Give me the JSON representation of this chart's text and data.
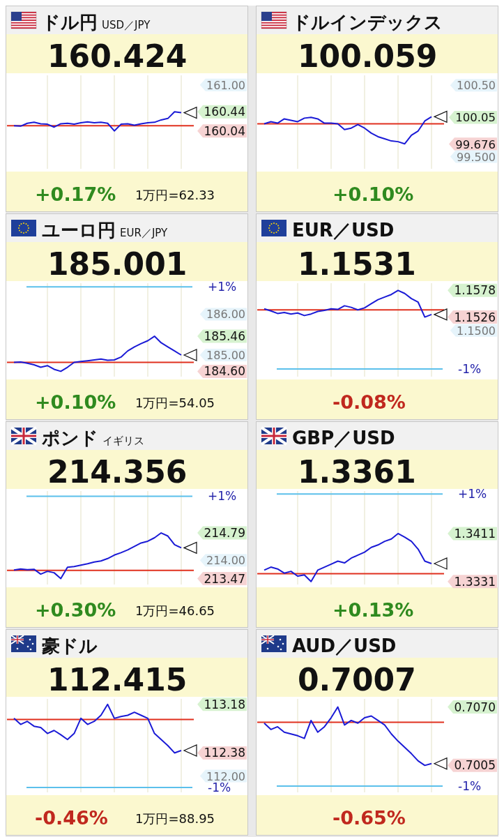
{
  "chart_data": [
    {
      "type": "line",
      "title": "ドル円",
      "subtitle": "USD／JPY",
      "categories": [
        null,
        null,
        null,
        null,
        null,
        null,
        null,
        null,
        null,
        null,
        null,
        null,
        null,
        null,
        null,
        null,
        null,
        null,
        null,
        null,
        null,
        null,
        null,
        null,
        null,
        null
      ],
      "series": [
        {
          "color": "#1a1ad6",
          "values": [
            160.15,
            160.14,
            160.2,
            160.22,
            160.19,
            160.18,
            160.12,
            160.19,
            160.2,
            160.18,
            160.21,
            160.23,
            160.21,
            160.22,
            160.2,
            160.04,
            160.18,
            160.19,
            160.16,
            160.19,
            160.21,
            160.22,
            160.27,
            160.3,
            160.44,
            160.42
          ]
        }
      ],
      "ylim": [
        159.25,
        161.2
      ],
      "yticks": [
        {
          "value": 161,
          "label": "161.00"
        },
        160.44,
        160.04
      ],
      "grid": "x",
      "ref_lines": [
        {
          "axis": "y",
          "value": 160.15,
          "color": "#e0301e"
        }
      ],
      "annotations": [
        "160.424",
        "+0.17%",
        "1万円=62.33"
      ]
    },
    {
      "type": "line",
      "title": "ドルインデックス",
      "categories": [
        null,
        null,
        null,
        null,
        null,
        null,
        null,
        null,
        null,
        null,
        null,
        null,
        null,
        null,
        null,
        null,
        null,
        null,
        null,
        null,
        null,
        null,
        null,
        null,
        null,
        null
      ],
      "series": [
        {
          "color": "#1a1ad6",
          "values": [
            99.96,
            99.99,
            99.97,
            100.03,
            100.01,
            99.99,
            100.04,
            100.05,
            100.03,
            99.97,
            99.97,
            99.96,
            99.88,
            99.9,
            99.95,
            99.9,
            99.83,
            99.78,
            99.75,
            99.72,
            99.71,
            99.68,
            99.8,
            99.86,
            100.0,
            100.06
          ]
        }
      ],
      "ylim": [
        99.33,
        100.64
      ],
      "yticks": [
        {
          "value": 100.5,
          "label": "100.50"
        },
        100.05,
        99.676,
        {
          "value": 99.5,
          "label": "99.500"
        }
      ],
      "grid": "x",
      "ref_lines": [
        {
          "axis": "y",
          "value": 99.96,
          "color": "#e0301e"
        }
      ],
      "annotations": [
        "100.059",
        "+0.10%"
      ]
    },
    {
      "type": "line",
      "title": "ユーロ円",
      "subtitle": "EUR／JPY",
      "categories": [
        null,
        null,
        null,
        null,
        null,
        null,
        null,
        null,
        null,
        null,
        null,
        null,
        null,
        null,
        null,
        null,
        null,
        null,
        null,
        null,
        null,
        null,
        null,
        null,
        null,
        null
      ],
      "series": [
        {
          "color": "#1a1ad6",
          "values": [
            184.82,
            184.83,
            184.8,
            184.76,
            184.7,
            184.74,
            184.65,
            184.6,
            184.7,
            184.82,
            184.84,
            184.86,
            184.88,
            184.9,
            184.87,
            184.88,
            184.95,
            185.1,
            185.2,
            185.28,
            185.35,
            185.46,
            185.3,
            185.2,
            185.1,
            185.0
          ]
        }
      ],
      "ylim": [
        184.47,
        186.76
      ],
      "yticks": [
        {
          "value": 186,
          "label": "186.00"
        },
        185.46,
        {
          "value": 185,
          "label": "185.00"
        },
        {
          "value": 184.6,
          "label": "184.60"
        }
      ],
      "grid": "x",
      "ref_lines": [
        {
          "axis": "y",
          "value": 184.82,
          "color": "#e0301e"
        },
        {
          "axis": "y",
          "value": 186.67,
          "color": "#5bc0eb"
        }
      ],
      "annotations": [
        "185.001",
        "+0.10%",
        "+1%",
        "1万円=54.05"
      ]
    },
    {
      "type": "line",
      "title": "EUR／USD",
      "categories": [
        null,
        null,
        null,
        null,
        null,
        null,
        null,
        null,
        null,
        null,
        null,
        null,
        null,
        null,
        null,
        null,
        null,
        null,
        null,
        null,
        null,
        null,
        null,
        null,
        null,
        null
      ],
      "series": [
        {
          "color": "#1a1ad6",
          "values": [
            1.1542,
            1.1538,
            1.1533,
            1.1535,
            1.1532,
            1.1534,
            1.1529,
            1.1532,
            1.1537,
            1.1539,
            1.1542,
            1.1541,
            1.1548,
            1.1545,
            1.154,
            1.1544,
            1.1552,
            1.156,
            1.1565,
            1.157,
            1.1578,
            1.1572,
            1.1562,
            1.1555,
            1.1526,
            1.1531
          ]
        }
      ],
      "ylim": [
        1.141,
        1.1592
      ],
      "yticks": [
        1.1578,
        1.1526,
        {
          "value": 1.15,
          "label": "1.1500"
        }
      ],
      "grid": "x",
      "ref_lines": [
        {
          "axis": "y",
          "value": 1.154,
          "color": "#e0301e"
        },
        {
          "axis": "y",
          "value": 1.1425,
          "color": "#5bc0eb"
        }
      ],
      "annotations": [
        "1.1531",
        "-0.08%",
        "-1%"
      ]
    },
    {
      "type": "line",
      "title": "ポンド",
      "subtitle": "イギリス",
      "categories": [
        null,
        null,
        null,
        null,
        null,
        null,
        null,
        null,
        null,
        null,
        null,
        null,
        null,
        null,
        null,
        null,
        null,
        null,
        null,
        null,
        null,
        null,
        null,
        null,
        null,
        null
      ],
      "series": [
        {
          "color": "#1a1ad6",
          "values": [
            213.72,
            213.75,
            213.73,
            213.74,
            213.6,
            213.68,
            213.64,
            213.47,
            213.8,
            213.82,
            213.86,
            213.9,
            213.95,
            213.98,
            214.05,
            214.15,
            214.22,
            214.3,
            214.4,
            214.5,
            214.55,
            214.65,
            214.79,
            214.7,
            214.45,
            214.36
          ]
        }
      ],
      "ylim": [
        213.3,
        216.0
      ],
      "yticks": [
        214.79,
        {
          "value": 214,
          "label": "214.00"
        },
        213.47
      ],
      "grid": "x",
      "ref_lines": [
        {
          "axis": "y",
          "value": 213.71,
          "color": "#e0301e"
        },
        {
          "axis": "y",
          "value": 215.85,
          "color": "#5bc0eb"
        }
      ],
      "annotations": [
        "214.356",
        "+0.30%",
        "+1%",
        "1万円=46.65"
      ]
    },
    {
      "type": "line",
      "title": "GBP／USD",
      "categories": [
        null,
        null,
        null,
        null,
        null,
        null,
        null,
        null,
        null,
        null,
        null,
        null,
        null,
        null,
        null,
        null,
        null,
        null,
        null,
        null,
        null,
        null,
        null,
        null,
        null,
        null
      ],
      "series": [
        {
          "color": "#1a1ad6",
          "values": [
            1.335,
            1.3355,
            1.3352,
            1.3345,
            1.3348,
            1.334,
            1.3342,
            1.3331,
            1.335,
            1.3355,
            1.336,
            1.3365,
            1.3362,
            1.337,
            1.3375,
            1.338,
            1.3388,
            1.3392,
            1.3398,
            1.3402,
            1.3411,
            1.3405,
            1.3398,
            1.3385,
            1.3365,
            1.3361
          ]
        }
      ],
      "ylim": [
        1.3326,
        1.3482
      ],
      "yticks": [
        1.3411,
        1.3331
      ],
      "grid": "x",
      "ref_lines": [
        {
          "axis": "y",
          "value": 1.3344,
          "color": "#e0301e"
        },
        {
          "axis": "y",
          "value": 1.3477,
          "color": "#5bc0eb"
        }
      ],
      "annotations": [
        "1.3361",
        "+0.13%",
        "+1%"
      ]
    },
    {
      "type": "line",
      "title": "豪ドル",
      "categories": [
        null,
        null,
        null,
        null,
        null,
        null,
        null,
        null,
        null,
        null,
        null,
        null,
        null,
        null,
        null,
        null,
        null,
        null,
        null,
        null,
        null,
        null,
        null,
        null,
        null,
        null
      ],
      "series": [
        {
          "color": "#1a1ad6",
          "values": [
            112.95,
            112.85,
            112.9,
            112.82,
            112.8,
            112.7,
            112.75,
            112.68,
            112.6,
            112.7,
            112.95,
            112.85,
            112.9,
            113.0,
            113.18,
            112.95,
            112.98,
            113.0,
            113.05,
            113.0,
            112.95,
            112.7,
            112.6,
            112.5,
            112.38,
            112.42
          ]
        }
      ],
      "ylim": [
        111.73,
        113.27
      ],
      "yticks": [
        113.18,
        112.38,
        {
          "value": 112,
          "label": "112.00"
        }
      ],
      "grid": "x",
      "ref_lines": [
        {
          "axis": "y",
          "value": 112.93,
          "color": "#e0301e"
        },
        {
          "axis": "y",
          "value": 111.81,
          "color": "#5bc0eb"
        }
      ],
      "annotations": [
        "112.415",
        "-0.46%",
        "-1%",
        "1万円=88.95"
      ]
    },
    {
      "type": "line",
      "title": "AUD／USD",
      "categories": [
        null,
        null,
        null,
        null,
        null,
        null,
        null,
        null,
        null,
        null,
        null,
        null,
        null,
        null,
        null,
        null,
        null,
        null,
        null,
        null,
        null,
        null,
        null,
        null,
        null,
        null
      ],
      "series": [
        {
          "color": "#1a1ad6",
          "values": [
            0.7052,
            0.7045,
            0.7048,
            0.7042,
            0.704,
            0.7038,
            0.7035,
            0.7055,
            0.7042,
            0.7048,
            0.7058,
            0.707,
            0.705,
            0.7055,
            0.7052,
            0.7058,
            0.706,
            0.7055,
            0.705,
            0.704,
            0.7032,
            0.7025,
            0.7018,
            0.701,
            0.7005,
            0.7007
          ]
        }
      ],
      "ylim": [
        0.6975,
        0.7079
      ],
      "yticks": [
        {
          "value": 0.707,
          "label": "0.7070"
        },
        0.7005
      ],
      "grid": "x",
      "ref_lines": [
        {
          "axis": "y",
          "value": 0.7053,
          "color": "#e0301e"
        },
        {
          "axis": "y",
          "value": 0.6982,
          "color": "#5bc0eb"
        }
      ],
      "annotations": [
        "0.7007",
        "-0.65%",
        "-1%"
      ]
    }
  ]
}
